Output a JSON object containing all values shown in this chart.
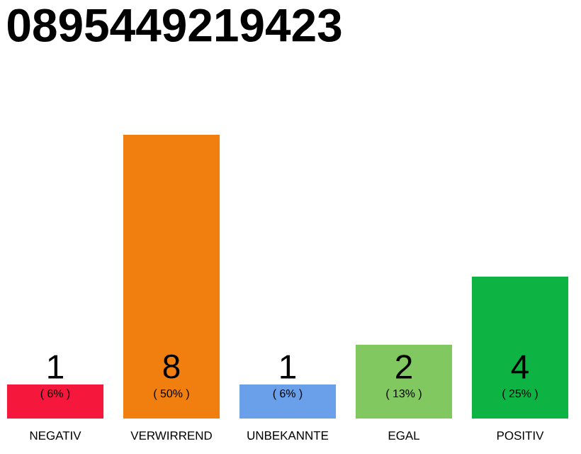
{
  "chart_data": {
    "type": "bar",
    "title": "0895449219423",
    "categories": [
      "NEGATIV",
      "VERWIRREND",
      "UNBEKANNTE",
      "EGAL",
      "POSITIV"
    ],
    "values": [
      6,
      50,
      6,
      13,
      25
    ],
    "colors": [
      "#f5183c",
      "#f07f0f",
      "#6aa0ea",
      "#80c85f",
      "#0db444"
    ],
    "value_labels": [
      "( 6% )",
      "( 50% )",
      "( 6% )",
      "( 13% )",
      "( 25% )"
    ],
    "annotations": [
      "1",
      "8",
      "1",
      "2",
      "4"
    ],
    "tick_labels": "x"
  }
}
